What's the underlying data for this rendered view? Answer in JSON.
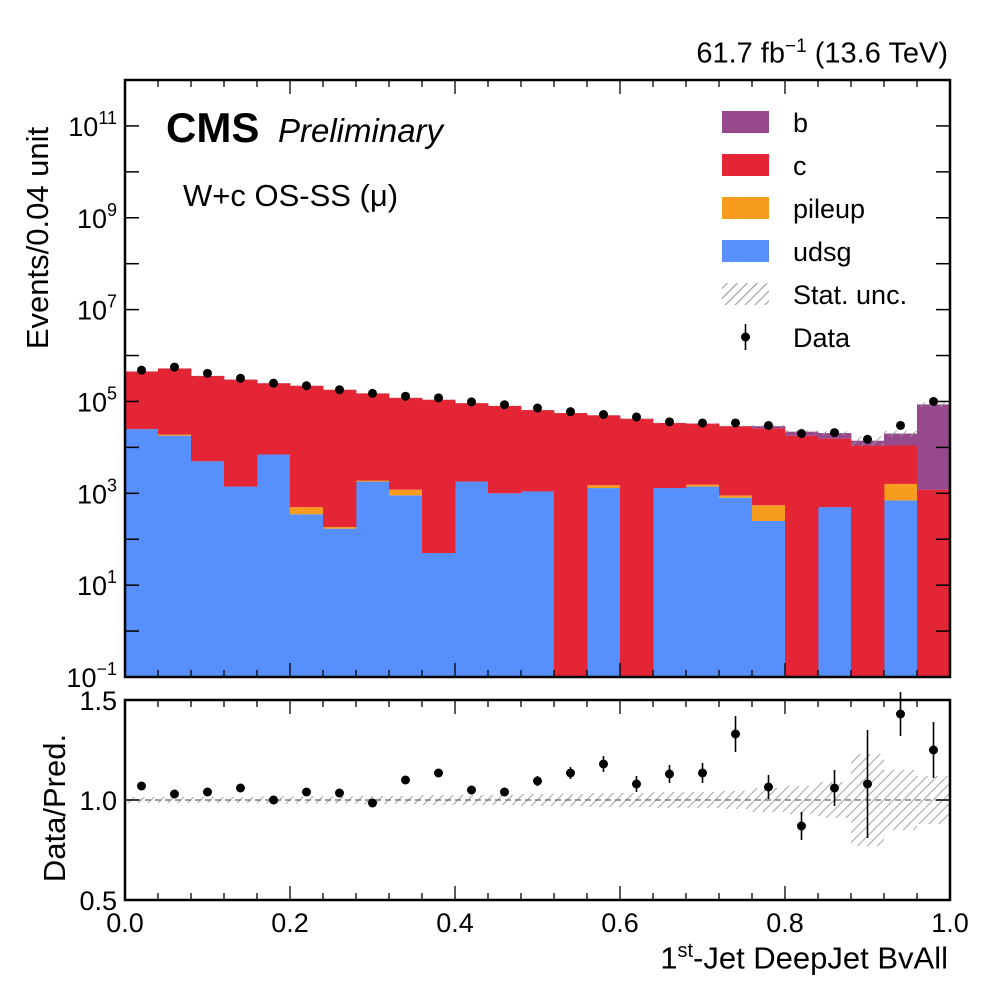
{
  "header": {
    "lumi_text": "61.7 fb",
    "lumi_exp": "−1",
    "energy_text": " (13.6 TeV)",
    "cms": "CMS",
    "preliminary": "Preliminary",
    "annotation": "W+c OS-SS (μ)"
  },
  "chart_data": [
    {
      "type": "stacked-histogram",
      "ylabel": "Events/0.04 unit",
      "yscale": "log",
      "ylim": [
        0.1,
        1000000000000.0
      ],
      "xlim": [
        0.0,
        1.0
      ],
      "bin_edges": [
        0.0,
        0.04,
        0.08,
        0.12,
        0.16,
        0.2,
        0.24,
        0.28,
        0.32,
        0.36,
        0.4,
        0.44,
        0.48,
        0.52,
        0.56,
        0.6,
        0.64,
        0.68,
        0.72,
        0.76,
        0.8,
        0.84,
        0.88,
        0.92,
        0.96,
        1.0
      ],
      "y_ticks": [
        {
          "value": 0.1,
          "base": "10",
          "exp": "−1"
        },
        {
          "value": 10,
          "base": "10",
          "exp": "1"
        },
        {
          "value": 1000,
          "base": "10",
          "exp": "3"
        },
        {
          "value": 100000,
          "base": "10",
          "exp": "5"
        },
        {
          "value": 10000000,
          "base": "10",
          "exp": "7"
        },
        {
          "value": 1000000000,
          "base": "10",
          "exp": "9"
        },
        {
          "value": 100000000000,
          "base": "10",
          "exp": "11"
        }
      ],
      "series": [
        {
          "name": "udsg",
          "color": "#5790fc",
          "values": [
            25000,
            18000,
            5000,
            1400,
            7000,
            350,
            170,
            1800,
            900,
            50,
            1800,
            1000,
            1100,
            0,
            1300,
            0,
            1300,
            1400,
            800,
            250,
            0,
            500,
            0,
            700,
            0
          ]
        },
        {
          "name": "pileup",
          "color": "#f89c20",
          "values": [
            0,
            1000,
            0,
            0,
            0,
            150,
            15,
            100,
            300,
            0,
            0,
            0,
            0,
            0,
            200,
            0,
            0,
            150,
            100,
            300,
            0,
            0,
            0,
            900,
            0
          ]
        },
        {
          "name": "c",
          "color": "#e42536",
          "values": [
            425000,
            505000,
            355000,
            298500,
            243000,
            219500,
            179815,
            148100,
            118800,
            108950,
            90200,
            79000,
            63900,
            56000,
            48500,
            42000,
            32700,
            31450,
            28100,
            25450,
            18000,
            15000,
            11000,
            9400,
            1200
          ]
        },
        {
          "name": "b",
          "color": "#964a8b",
          "values": [
            0,
            0,
            0,
            0,
            0,
            0,
            0,
            0,
            0,
            0,
            0,
            0,
            0,
            0,
            0,
            0,
            0,
            0,
            0,
            3000,
            4000,
            5000,
            3000,
            9000,
            85000
          ]
        }
      ],
      "stat_unc_label": "Stat. unc.",
      "data": {
        "name": "Data",
        "x": [
          0.02,
          0.06,
          0.1,
          0.14,
          0.18,
          0.22,
          0.26,
          0.3,
          0.34,
          0.38,
          0.42,
          0.46,
          0.5,
          0.54,
          0.58,
          0.62,
          0.66,
          0.7,
          0.74,
          0.78,
          0.82,
          0.86,
          0.9,
          0.94,
          0.98
        ],
        "y": [
          480000,
          560000,
          410000,
          320000,
          250000,
          220000,
          180000,
          150000,
          130000,
          120000,
          98000,
          85000,
          72000,
          60000,
          52000,
          46000,
          36000,
          34000,
          34000,
          30000,
          20000,
          21000,
          15000,
          30000,
          100000
        ]
      }
    },
    {
      "type": "ratio",
      "ylabel": "Data/Pred.",
      "xlabel_main": "1",
      "xlabel_sup": "st",
      "xlabel_rest": "-Jet DeepJet BvAll",
      "ylim": [
        0.5,
        1.5
      ],
      "y_ticks": [
        "0.5",
        "1.0",
        "1.5"
      ],
      "x_ticks": [
        "0.0",
        "0.2",
        "0.4",
        "0.6",
        "0.8",
        "1.0"
      ],
      "x": [
        0.02,
        0.06,
        0.1,
        0.14,
        0.18,
        0.22,
        0.26,
        0.3,
        0.34,
        0.38,
        0.42,
        0.46,
        0.5,
        0.54,
        0.58,
        0.62,
        0.66,
        0.7,
        0.74,
        0.78,
        0.82,
        0.86,
        0.9,
        0.94,
        0.98
      ],
      "y": [
        1.07,
        1.03,
        1.04,
        1.06,
        1.0,
        1.04,
        1.035,
        0.985,
        1.1,
        1.135,
        1.05,
        1.04,
        1.095,
        1.135,
        1.18,
        1.08,
        1.13,
        1.135,
        1.33,
        1.065,
        0.87,
        1.06,
        1.08,
        1.43,
        1.25
      ],
      "err": [
        0.012,
        0.012,
        0.012,
        0.012,
        0.012,
        0.012,
        0.012,
        0.015,
        0.015,
        0.018,
        0.02,
        0.02,
        0.025,
        0.03,
        0.04,
        0.04,
        0.045,
        0.05,
        0.09,
        0.06,
        0.07,
        0.09,
        0.27,
        0.11,
        0.14
      ],
      "unc_band": [
        0.015,
        0.015,
        0.015,
        0.015,
        0.018,
        0.018,
        0.018,
        0.02,
        0.02,
        0.025,
        0.025,
        0.025,
        0.03,
        0.03,
        0.035,
        0.035,
        0.04,
        0.04,
        0.045,
        0.06,
        0.07,
        0.09,
        0.23,
        0.15,
        0.12
      ]
    }
  ]
}
